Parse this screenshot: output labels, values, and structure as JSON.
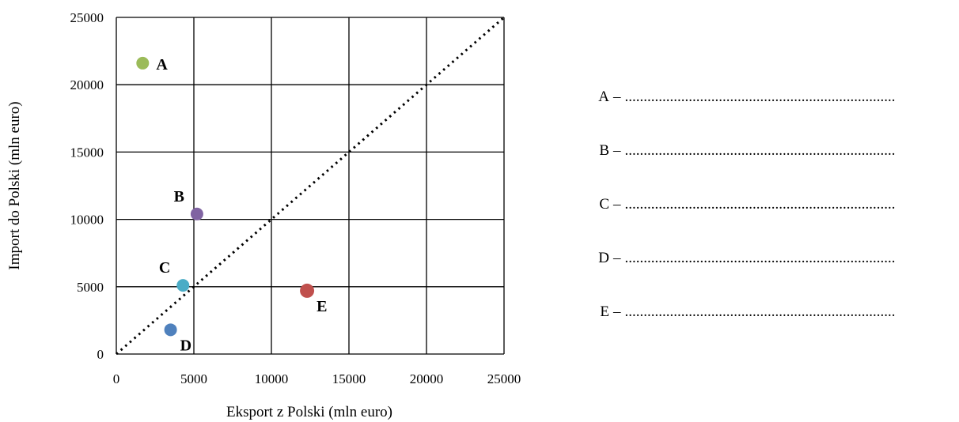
{
  "chart_data": {
    "type": "scatter",
    "xlabel": "Eksport z Polski (mln euro)",
    "ylabel": "Import do Polski (mln euro)",
    "xlim": [
      0,
      25000
    ],
    "ylim": [
      0,
      25000
    ],
    "x_ticks": [
      "0",
      "5000",
      "10000",
      "15000",
      "20000",
      "25000"
    ],
    "y_ticks": [
      "0",
      "5000",
      "10000",
      "15000",
      "20000",
      "25000"
    ],
    "grid": true,
    "reference_line": {
      "style": "dotted",
      "from": [
        0,
        0
      ],
      "to": [
        25000,
        25000
      ]
    },
    "points": [
      {
        "label": "A",
        "x": 1700,
        "y": 21600,
        "color": "#9BBB59",
        "label_pos": "right"
      },
      {
        "label": "B",
        "x": 5200,
        "y": 10400,
        "color": "#8064A2",
        "label_pos": "upper-left"
      },
      {
        "label": "C",
        "x": 4300,
        "y": 5100,
        "color": "#4BACC6",
        "label_pos": "upper-left"
      },
      {
        "label": "D",
        "x": 3500,
        "y": 1800,
        "color": "#4F81BD",
        "label_pos": "lower-right"
      },
      {
        "label": "E",
        "x": 12300,
        "y": 4700,
        "color": "#C0504D",
        "label_pos": "lower-right"
      }
    ]
  },
  "answers": [
    {
      "letter": "A",
      "dash": "–",
      "line": "........................................................................"
    },
    {
      "letter": "B",
      "dash": "–",
      "line": "........................................................................"
    },
    {
      "letter": "C",
      "dash": "–",
      "line": "........................................................................"
    },
    {
      "letter": "D",
      "dash": "–",
      "line": "........................................................................"
    },
    {
      "letter": "E",
      "dash": "–",
      "line": "........................................................................"
    }
  ]
}
